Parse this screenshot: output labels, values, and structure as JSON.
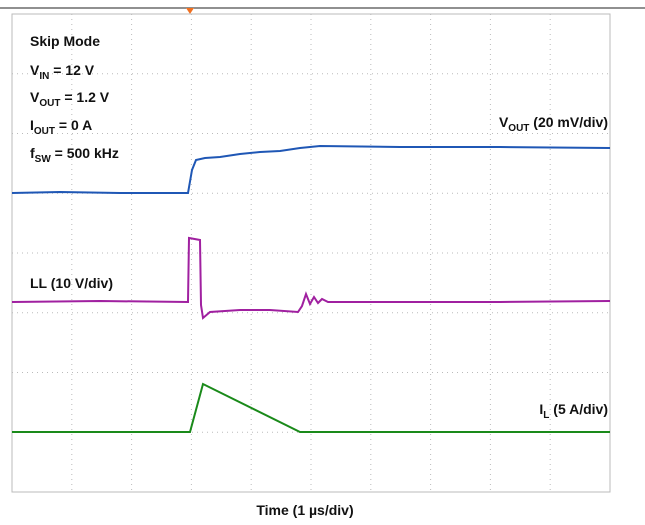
{
  "annotations": {
    "mode": "Skip Mode",
    "vin": {
      "symbol": "V",
      "sub": "IN",
      "rest": " = 12 V"
    },
    "vout": {
      "symbol": "V",
      "sub": "OUT",
      "rest": " = 1.2 V"
    },
    "iout": {
      "symbol": "I",
      "sub": "OUT",
      "rest": " = 0 A"
    },
    "fsw": {
      "symbol": "f",
      "sub": "SW",
      "rest": " = 500 kHz"
    }
  },
  "traces": {
    "vout": {
      "symbol": "V",
      "sub": "OUT",
      "rest": " (20 mV/div)"
    },
    "ll": "LL (10 V/div)",
    "il": {
      "symbol": "I",
      "sub": "L",
      "rest": " (5 A/div)"
    }
  },
  "x_label": "Time (1 µs/div)"
}
